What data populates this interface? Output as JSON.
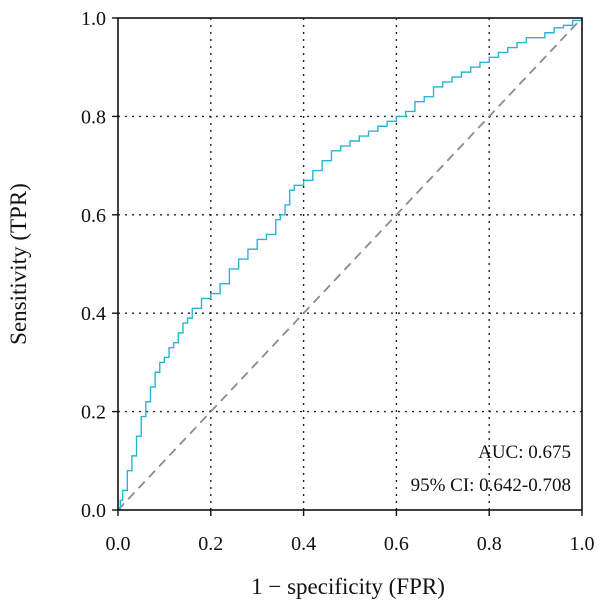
{
  "chart_data": {
    "type": "line",
    "xlabel": "1 − specificity (FPR)",
    "ylabel": "Sensitivity (TPR)",
    "xlim": [
      0,
      1
    ],
    "ylim": [
      0,
      1
    ],
    "x_ticks": [
      "0.0",
      "0.2",
      "0.4",
      "0.6",
      "0.8",
      "1.0"
    ],
    "y_ticks": [
      "0.0",
      "0.2",
      "0.4",
      "0.6",
      "0.8",
      "1.0"
    ],
    "grid": true,
    "grid_style": "dotted",
    "colors": {
      "roc": "#29b5d4",
      "reference": "#8c8c8c",
      "axes": "#111111",
      "grid": "#222222"
    },
    "series": [
      {
        "style": "step",
        "x": [
          0.0,
          0.005,
          0.01,
          0.02,
          0.03,
          0.04,
          0.05,
          0.06,
          0.07,
          0.08,
          0.09,
          0.1,
          0.11,
          0.12,
          0.13,
          0.14,
          0.15,
          0.16,
          0.18,
          0.2,
          0.22,
          0.24,
          0.26,
          0.28,
          0.3,
          0.32,
          0.34,
          0.35,
          0.36,
          0.37,
          0.38,
          0.4,
          0.42,
          0.44,
          0.46,
          0.48,
          0.5,
          0.52,
          0.54,
          0.56,
          0.58,
          0.6,
          0.62,
          0.64,
          0.66,
          0.68,
          0.7,
          0.72,
          0.74,
          0.76,
          0.78,
          0.8,
          0.82,
          0.84,
          0.86,
          0.88,
          0.9,
          0.92,
          0.94,
          0.96,
          0.98,
          1.0
        ],
        "y": [
          0.0,
          0.02,
          0.04,
          0.08,
          0.11,
          0.15,
          0.19,
          0.22,
          0.25,
          0.28,
          0.3,
          0.31,
          0.33,
          0.34,
          0.36,
          0.38,
          0.39,
          0.41,
          0.43,
          0.44,
          0.46,
          0.49,
          0.51,
          0.53,
          0.55,
          0.56,
          0.59,
          0.6,
          0.62,
          0.65,
          0.66,
          0.67,
          0.69,
          0.71,
          0.73,
          0.74,
          0.75,
          0.76,
          0.77,
          0.78,
          0.79,
          0.8,
          0.81,
          0.83,
          0.84,
          0.86,
          0.87,
          0.88,
          0.89,
          0.9,
          0.91,
          0.92,
          0.93,
          0.94,
          0.95,
          0.96,
          0.96,
          0.97,
          0.98,
          0.985,
          0.995,
          1.0
        ]
      },
      {
        "style": "dashed",
        "x": [
          0,
          1
        ],
        "y": [
          0,
          1
        ]
      }
    ],
    "annotations": [
      "AUC: 0.675",
      "95% CI: 0.642-0.708"
    ]
  }
}
